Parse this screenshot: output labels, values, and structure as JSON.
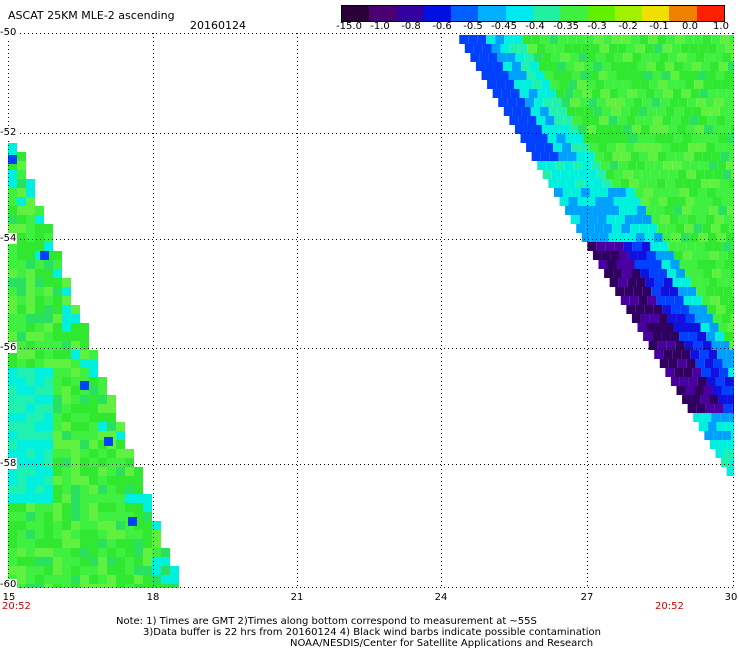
{
  "header": {
    "title": "ASCAT 25KM MLE-2 ascending",
    "date": "20160124"
  },
  "colorbar": {
    "labels": [
      "-15.0",
      "-1.0",
      "-0.8",
      "-0.6",
      "-0.5",
      "-0.45",
      "-0.4",
      "-0.35",
      "-0.3",
      "-0.2",
      "-0.1",
      "0.0",
      "1.0"
    ],
    "colors": [
      "#2a0038",
      "#4a0070",
      "#3300a0",
      "#0010e0",
      "#0060ff",
      "#00b0ff",
      "#00e8f0",
      "#20f0a0",
      "#40f040",
      "#60f000",
      "#a0f000",
      "#f0e000",
      "#f08000",
      "#ff2000"
    ]
  },
  "axes": {
    "y_ticks": [
      "-50",
      "-52",
      "-54",
      "-56",
      "-58",
      "-60"
    ],
    "x_ticks": [
      "15",
      "18",
      "21",
      "24",
      "27",
      "30"
    ],
    "time_left": "20:52",
    "time_right": "20:52"
  },
  "notes": {
    "line1": "Note: 1) Times are GMT 2)Times along bottom correspond to measurement at ~55S",
    "line2": "3)Data buffer is 22 hrs from 20160124 4) Black wind barbs indicate possible contamination",
    "line3": "NOAA/NESDIS/Center for Satellite Applications and Research"
  }
}
